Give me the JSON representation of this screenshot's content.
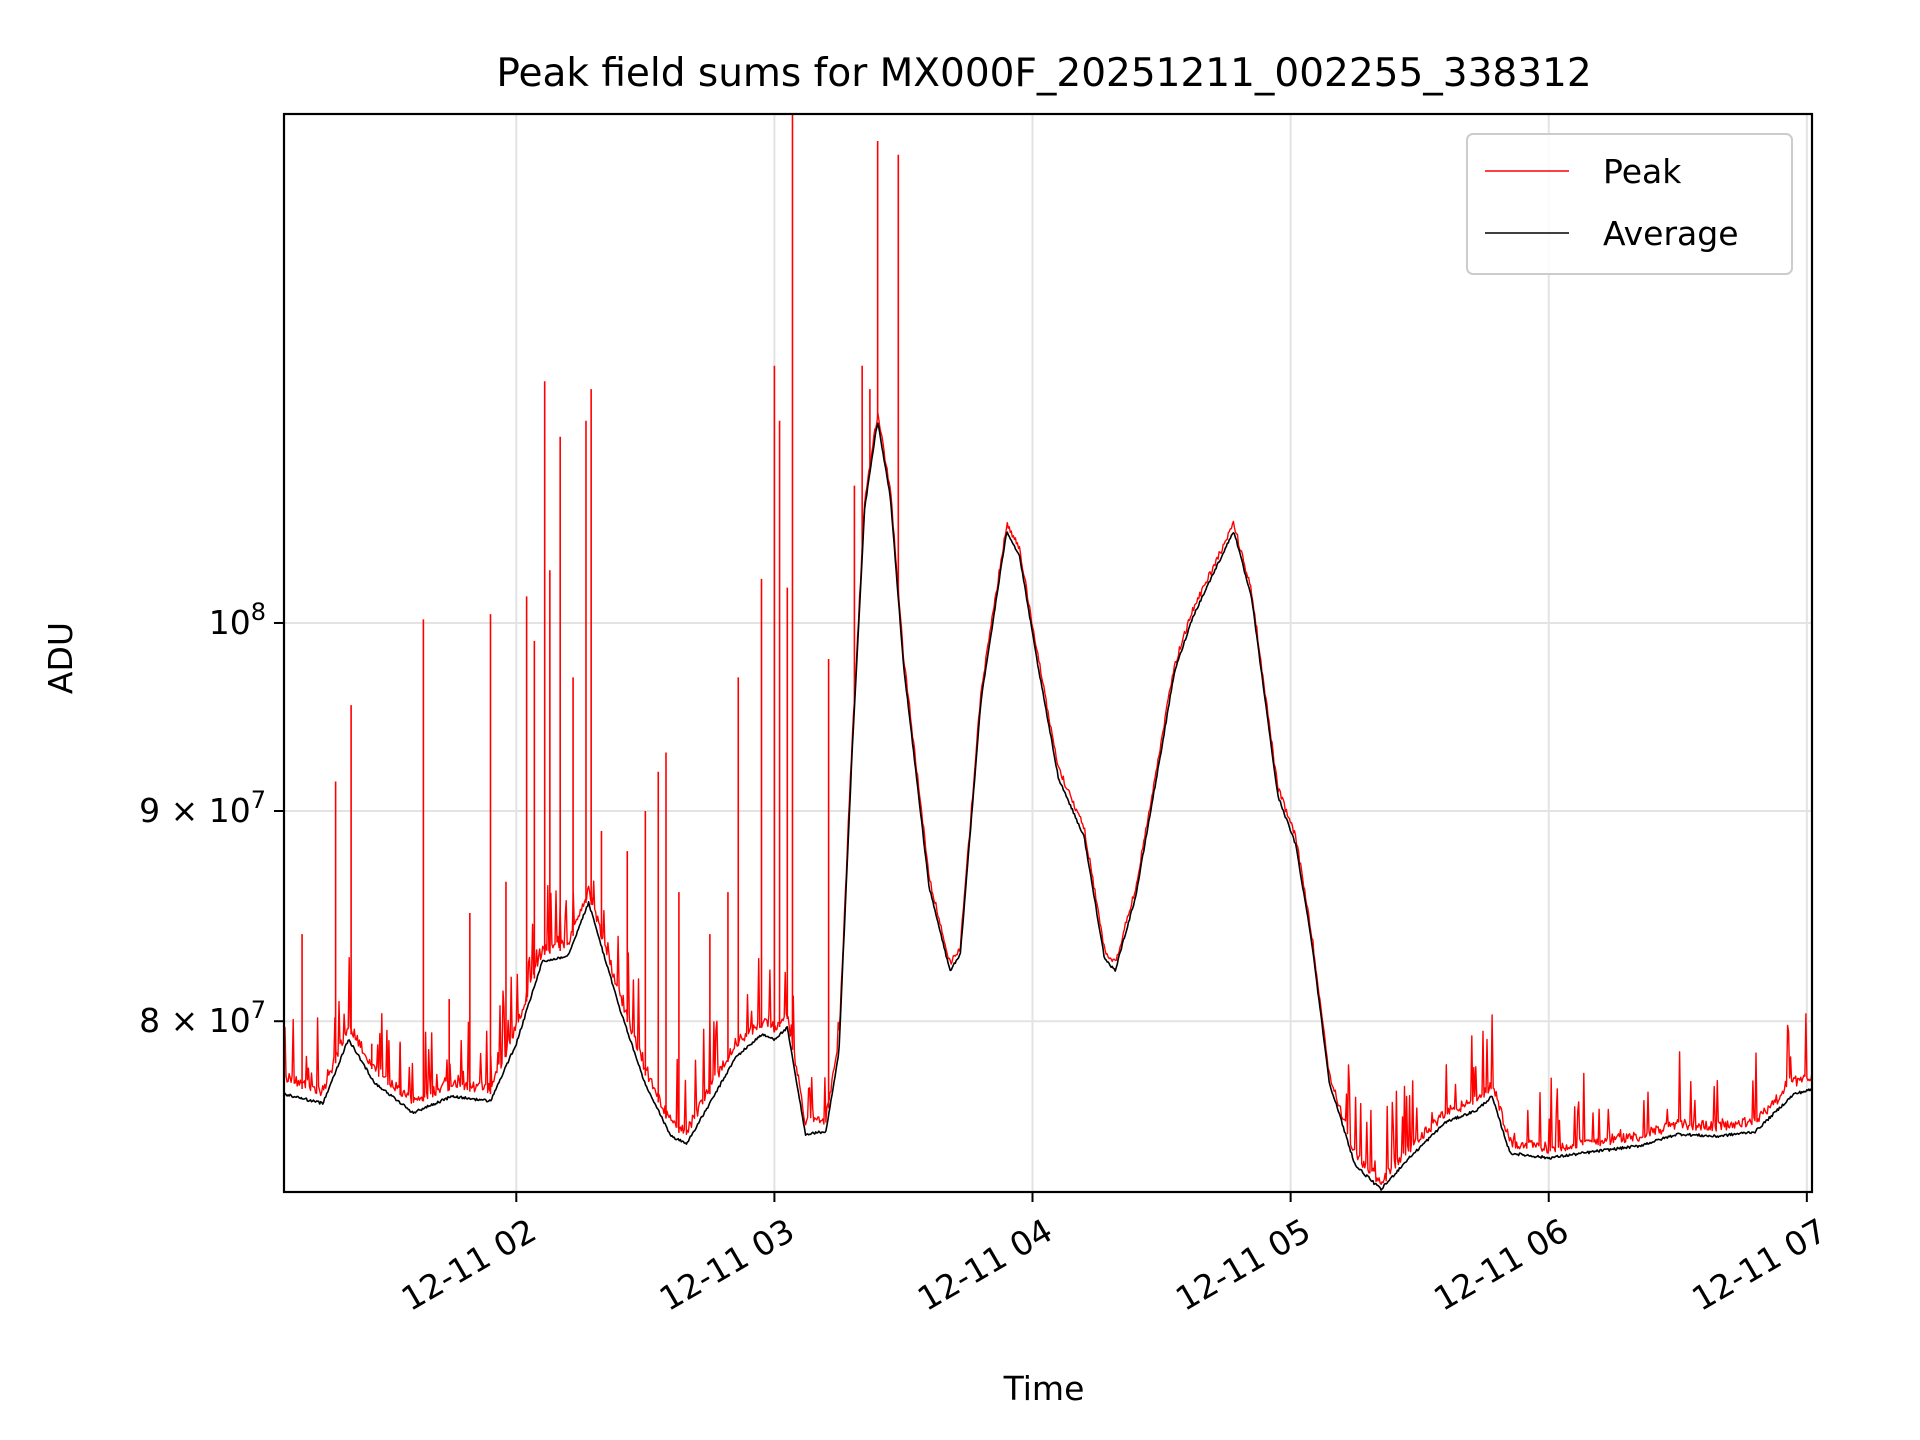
{
  "chart_data": {
    "type": "line",
    "title": "Peak field sums for MX000F_20251211_002255_338312",
    "xlabel": "Time",
    "ylabel": "ADU",
    "yscale": "log",
    "grid": true,
    "legend_position": "top-right",
    "x_units": "hours since 12-11 00:00",
    "xlim": [
      1.1,
      7.02
    ],
    "ylim": [
      72700000,
      133000000
    ],
    "x_ticks": [
      {
        "x": 2,
        "label": "12-11 02"
      },
      {
        "x": 3,
        "label": "12-11 03"
      },
      {
        "x": 4,
        "label": "12-11 04"
      },
      {
        "x": 5,
        "label": "12-11 05"
      },
      {
        "x": 6,
        "label": "12-11 06"
      },
      {
        "x": 7,
        "label": "12-11 07"
      }
    ],
    "y_ticks": [
      {
        "y": 80000000,
        "mantissa": "8",
        "base": "10",
        "exp": "7"
      },
      {
        "y": 90000000,
        "mantissa": "9",
        "base": "10",
        "exp": "7"
      },
      {
        "y": 100000000,
        "mantissa": "",
        "base": "10",
        "exp": "8"
      }
    ],
    "times_symbol": "×",
    "series": [
      {
        "name": "Peak",
        "color": "#ff0000",
        "spikes": [
          [
            1.17,
            84000000
          ],
          [
            1.3,
            91500000
          ],
          [
            1.36,
            95500000
          ],
          [
            1.44,
            79000000
          ],
          [
            1.55,
            79000000
          ],
          [
            1.64,
            100200000
          ],
          [
            1.74,
            81000000
          ],
          [
            1.82,
            85000000
          ],
          [
            1.9,
            100500000
          ],
          [
            1.96,
            86500000
          ],
          [
            2.04,
            101500000
          ],
          [
            2.07,
            99000000
          ],
          [
            2.11,
            114500000
          ],
          [
            2.13,
            103000000
          ],
          [
            2.17,
            111000000
          ],
          [
            2.22,
            97000000
          ],
          [
            2.27,
            112000000
          ],
          [
            2.29,
            114000000
          ],
          [
            2.33,
            89000000
          ],
          [
            2.43,
            88000000
          ],
          [
            2.5,
            90000000
          ],
          [
            2.55,
            92000000
          ],
          [
            2.58,
            93000000
          ],
          [
            2.63,
            86000000
          ],
          [
            2.75,
            84000000
          ],
          [
            2.82,
            86000000
          ],
          [
            2.86,
            97000000
          ],
          [
            2.95,
            102500000
          ],
          [
            3.0,
            115500000
          ],
          [
            3.02,
            112000000
          ],
          [
            3.05,
            102000000
          ],
          [
            3.07,
            133000000
          ],
          [
            3.21,
            98000000
          ],
          [
            3.31,
            108000000
          ],
          [
            3.34,
            115500000
          ],
          [
            3.37,
            114000000
          ],
          [
            3.4,
            131000000
          ],
          [
            3.48,
            130000000
          ]
        ],
        "x": [
          1.1,
          1.25,
          1.35,
          1.45,
          1.6,
          1.75,
          1.9,
          2.0,
          2.1,
          2.2,
          2.28,
          2.4,
          2.5,
          2.6,
          2.66,
          2.75,
          2.85,
          2.95,
          3.0,
          3.05,
          3.12,
          3.2,
          3.25,
          3.3,
          3.35,
          3.4,
          3.45,
          3.5,
          3.6,
          3.68,
          3.72,
          3.8,
          3.9,
          3.95,
          4.02,
          4.1,
          4.2,
          4.28,
          4.32,
          4.4,
          4.5,
          4.55,
          4.62,
          4.7,
          4.78,
          4.85,
          4.95,
          5.02,
          5.08,
          5.15,
          5.25,
          5.35,
          5.45,
          5.6,
          5.72,
          5.78,
          5.85,
          6.0,
          6.2,
          6.35,
          6.5,
          6.65,
          6.8,
          6.95,
          7.02
        ],
        "values": [
          77300000,
          76700000,
          79600000,
          77700000,
          76300000,
          77000000,
          76800000,
          79500000,
          83000000,
          83300000,
          85800000,
          81000000,
          77600000,
          75300000,
          75000000,
          76800000,
          78800000,
          79700000,
          79500000,
          80100000,
          75400000,
          75500000,
          79000000,
          93000000,
          107000000,
          112200000,
          107500000,
          98000000,
          86500000,
          82500000,
          83200000,
          96000000,
          105500000,
          104000000,
          98000000,
          92000000,
          89000000,
          83000000,
          82500000,
          86000000,
          93500000,
          97500000,
          100500000,
          103000000,
          105500000,
          101500000,
          91000000,
          88500000,
          84000000,
          77500000,
          74000000,
          72900000,
          74200000,
          75800000,
          76300000,
          77000000,
          74500000,
          74300000,
          74600000,
          74800000,
          75300000,
          75200000,
          75400000,
          77100000,
          77300000
        ]
      },
      {
        "name": "Average",
        "color": "#000000",
        "x": [
          1.1,
          1.25,
          1.35,
          1.45,
          1.6,
          1.75,
          1.9,
          2.0,
          2.1,
          2.2,
          2.28,
          2.4,
          2.5,
          2.6,
          2.66,
          2.75,
          2.85,
          2.95,
          3.0,
          3.05,
          3.12,
          3.2,
          3.25,
          3.3,
          3.35,
          3.4,
          3.45,
          3.5,
          3.6,
          3.68,
          3.72,
          3.8,
          3.9,
          3.95,
          4.02,
          4.1,
          4.2,
          4.28,
          4.32,
          4.4,
          4.5,
          4.55,
          4.62,
          4.7,
          4.78,
          4.85,
          4.95,
          5.02,
          5.08,
          5.15,
          5.25,
          5.35,
          5.45,
          5.6,
          5.72,
          5.78,
          5.85,
          6.0,
          6.2,
          6.35,
          6.5,
          6.65,
          6.8,
          6.95,
          7.02
        ],
        "values": [
          76800000,
          76400000,
          79200000,
          77300000,
          76000000,
          76700000,
          76500000,
          79000000,
          82700000,
          83000000,
          85500000,
          80600000,
          77200000,
          75000000,
          74700000,
          76400000,
          78400000,
          79400000,
          79200000,
          79700000,
          75100000,
          75200000,
          78600000,
          92700000,
          106700000,
          112000000,
          107200000,
          97700000,
          86200000,
          82300000,
          83000000,
          95700000,
          105300000,
          103800000,
          97700000,
          91700000,
          88700000,
          82800000,
          82300000,
          85800000,
          93200000,
          97300000,
          100300000,
          102800000,
          105300000,
          101300000,
          90800000,
          88300000,
          83800000,
          77300000,
          73800000,
          72800000,
          74000000,
          75600000,
          76100000,
          76700000,
          74300000,
          74100000,
          74400000,
          74600000,
          75100000,
          75000000,
          75200000,
          76800000,
          77000000
        ]
      }
    ]
  }
}
